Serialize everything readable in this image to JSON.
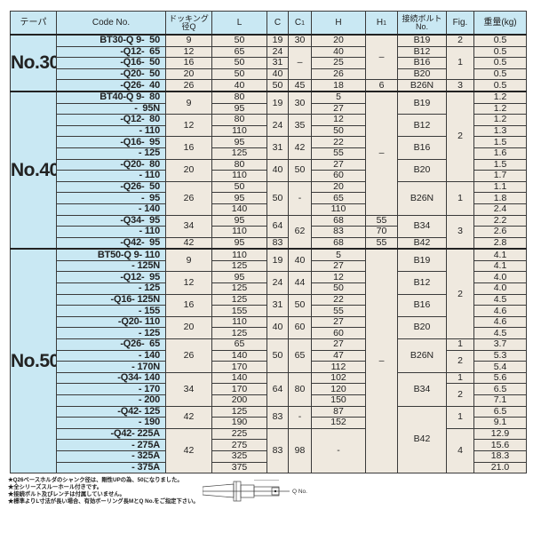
{
  "header": {
    "taper": "テーパ",
    "code": "Code No.",
    "q_line1": "ドッキング",
    "q_line2": "径Q",
    "l": "L",
    "c": "C",
    "c1": "C",
    "c1_sub": "1",
    "h": "H",
    "h1": "H",
    "h1_sub": "1",
    "bolt_line1": "接続ボルト",
    "bolt_line2": "No.",
    "fig": "Fig.",
    "weight": "重量(kg)"
  },
  "groups": [
    {
      "taper": "No.30",
      "rows": [
        [
          "BT30-Q 9-  50",
          "9",
          "50",
          "19",
          "30",
          "20",
          "–",
          "B19",
          "2",
          "0.5"
        ],
        [
          "-Q12-  65",
          "12",
          "65",
          "24",
          "–",
          "40",
          null,
          "B12",
          "1",
          "0.5"
        ],
        [
          "-Q16-  50",
          "16",
          "50",
          "31",
          null,
          "25",
          null,
          "B16",
          null,
          "0.5"
        ],
        [
          "-Q20-  50",
          "20",
          "50",
          "40",
          null,
          "26",
          null,
          "B20",
          null,
          "0.5"
        ],
        [
          "-Q26-  40",
          "26",
          "40",
          "50",
          "45",
          "18",
          "6",
          "B26N",
          "3",
          "0.5"
        ]
      ]
    },
    {
      "taper": "No.40",
      "rows": [
        [
          "BT40-Q 9-  80",
          "9",
          "80",
          "19",
          "30",
          "5",
          "–",
          "B19",
          "2",
          "1.2"
        ],
        [
          "-  95N",
          null,
          "95",
          null,
          null,
          "27",
          null,
          null,
          null,
          "1.2"
        ],
        [
          "-Q12-  80",
          "12",
          "80",
          "24",
          "35",
          "12",
          null,
          "B12",
          null,
          "1.2"
        ],
        [
          "- 110",
          null,
          "110",
          null,
          null,
          "50",
          null,
          null,
          null,
          "1.3"
        ],
        [
          "-Q16-  95",
          "16",
          "95",
          "31",
          "42",
          "22",
          null,
          "B16",
          null,
          "1.5"
        ],
        [
          "- 125",
          null,
          "125",
          null,
          null,
          "55",
          null,
          null,
          null,
          "1.6"
        ],
        [
          "-Q20-  80",
          "20",
          "80",
          "40",
          "50",
          "27",
          null,
          "B20",
          null,
          "1.5"
        ],
        [
          "- 110",
          null,
          "110",
          null,
          null,
          "60",
          null,
          null,
          null,
          "1.7"
        ],
        [
          "-Q26-  50",
          "26",
          "50",
          "50",
          "-",
          "20",
          null,
          "B26N",
          "1",
          "1.1"
        ],
        [
          "-  95",
          null,
          "95",
          null,
          null,
          "65",
          null,
          null,
          null,
          "1.8"
        ],
        [
          "- 140",
          null,
          "140",
          null,
          null,
          "110",
          null,
          null,
          null,
          "2.4"
        ],
        [
          "-Q34-  95",
          "34",
          "95",
          "64",
          "62",
          "68",
          "55",
          "B34",
          "3",
          "2.2"
        ],
        [
          "- 110",
          null,
          "110",
          null,
          null,
          "83",
          "70",
          null,
          null,
          "2.6"
        ],
        [
          "-Q42-  95",
          "42",
          "95",
          "83",
          null,
          "68",
          "55",
          "B42",
          null,
          "2.8"
        ]
      ]
    },
    {
      "taper": "No.50",
      "rows": [
        [
          "BT50-Q 9- 110",
          "9",
          "110",
          "19",
          "40",
          "5",
          "–",
          "B19",
          "2",
          "4.1"
        ],
        [
          "- 125N",
          null,
          "125",
          null,
          null,
          "27",
          null,
          null,
          null,
          "4.1"
        ],
        [
          "-Q12-  95",
          "12",
          "95",
          "24",
          "44",
          "12",
          null,
          "B12",
          null,
          "4.0"
        ],
        [
          "- 125",
          null,
          "125",
          null,
          null,
          "50",
          null,
          null,
          null,
          "4.0"
        ],
        [
          "-Q16- 125N",
          "16",
          "125",
          "31",
          "50",
          "22",
          null,
          "B16",
          null,
          "4.5"
        ],
        [
          "- 155",
          null,
          "155",
          null,
          null,
          "55",
          null,
          null,
          null,
          "4.6"
        ],
        [
          "-Q20- 110",
          "20",
          "110",
          "40",
          "60",
          "27",
          null,
          "B20",
          null,
          "4.6"
        ],
        [
          "- 125",
          null,
          "125",
          null,
          null,
          "60",
          null,
          null,
          null,
          "4.5"
        ],
        [
          "-Q26-  65",
          "26",
          "65",
          "50",
          "65",
          "27",
          null,
          "B26N",
          "1",
          "3.7"
        ],
        [
          "- 140",
          null,
          "140",
          null,
          null,
          "47",
          null,
          null,
          "2",
          "5.3"
        ],
        [
          "- 170N",
          null,
          "170",
          null,
          null,
          "112",
          null,
          null,
          null,
          "5.4"
        ],
        [
          "-Q34- 140",
          "34",
          "140",
          "64",
          "80",
          "102",
          null,
          "B34",
          "1",
          "5.6"
        ],
        [
          "- 170",
          null,
          "170",
          null,
          null,
          "120",
          null,
          null,
          "2",
          "6.5"
        ],
        [
          "- 200",
          null,
          "200",
          null,
          null,
          "150",
          null,
          null,
          null,
          "7.1"
        ],
        [
          "-Q42- 125",
          "42",
          "125",
          "83",
          "-",
          "87",
          null,
          "B42",
          "1",
          "6.5"
        ],
        [
          "- 190",
          null,
          "190",
          null,
          null,
          "152",
          null,
          null,
          null,
          "9.1"
        ],
        [
          "-Q42- 225A",
          "42",
          "225",
          "83",
          "98",
          "-",
          null,
          null,
          "4",
          "12.9"
        ],
        [
          "- 275A",
          null,
          "275",
          null,
          null,
          null,
          null,
          null,
          null,
          "15.6"
        ],
        [
          "- 325A",
          null,
          "325",
          null,
          null,
          null,
          null,
          null,
          null,
          "18.3"
        ],
        [
          "- 375A",
          null,
          "375",
          null,
          null,
          null,
          null,
          null,
          null,
          "21.0"
        ]
      ]
    }
  ],
  "notes": [
    "★Q26ベースホルダのシャンク径は、剛性UPの為、50になりました。",
    "★全シリーズスルーホール付きです。",
    "★接続ボルト及びレンチは付属していません。",
    "★標準よりL寸法が長い場合、有効ボーリング長MとQ No.をご指定下さい。"
  ],
  "diagram": {
    "label_l": "L",
    "label_m": "M",
    "label_q": "Q No."
  }
}
